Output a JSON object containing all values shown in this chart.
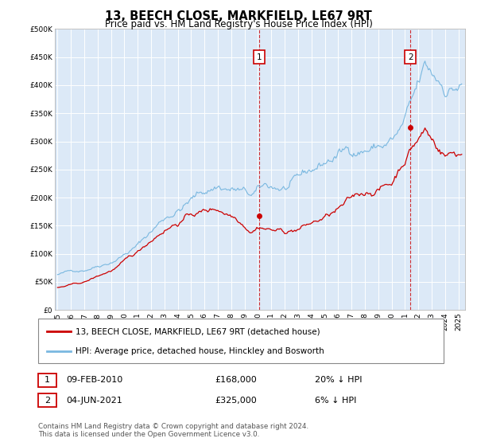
{
  "title": "13, BEECH CLOSE, MARKFIELD, LE67 9RT",
  "subtitle": "Price paid vs. HM Land Registry's House Price Index (HPI)",
  "legend_line1": "13, BEECH CLOSE, MARKFIELD, LE67 9RT (detached house)",
  "legend_line2": "HPI: Average price, detached house, Hinckley and Bosworth",
  "annotation1_label": "1",
  "annotation1_date": "09-FEB-2010",
  "annotation1_price": "£168,000",
  "annotation1_hpi": "20% ↓ HPI",
  "annotation2_label": "2",
  "annotation2_date": "04-JUN-2021",
  "annotation2_price": "£325,000",
  "annotation2_hpi": "6% ↓ HPI",
  "footer": "Contains HM Land Registry data © Crown copyright and database right 2024.\nThis data is licensed under the Open Government Licence v3.0.",
  "hpi_color": "#7ab8e0",
  "price_color": "#cc0000",
  "annotation_box_color": "#cc0000",
  "vline1_x": 2010.08,
  "vline2_x": 2021.42,
  "marker1_y": 168000,
  "marker2_y": 325000,
  "ylim": [
    0,
    500000
  ],
  "xlim_start": 1994.8,
  "xlim_end": 2025.5,
  "background_color": "#dce9f7",
  "plot_bg": "#ffffff",
  "yticks": [
    0,
    50000,
    100000,
    150000,
    200000,
    250000,
    300000,
    350000,
    400000,
    450000,
    500000
  ],
  "xtick_years": [
    1995,
    1996,
    1997,
    1998,
    1999,
    2000,
    2001,
    2002,
    2003,
    2004,
    2005,
    2006,
    2007,
    2008,
    2009,
    2010,
    2011,
    2012,
    2013,
    2014,
    2015,
    2016,
    2017,
    2018,
    2019,
    2020,
    2021,
    2022,
    2023,
    2024,
    2025
  ]
}
